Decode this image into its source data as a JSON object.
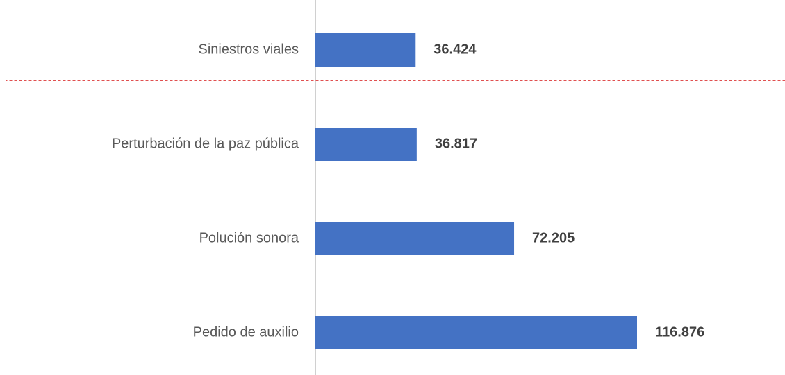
{
  "chart_data": {
    "type": "hbar",
    "categories": [
      "Siniestros viales",
      "Perturbación de la paz pública",
      "Polución sonora",
      "Pedido de auxilio"
    ],
    "values": [
      36424,
      36817,
      72205,
      116876
    ],
    "value_labels": [
      "36.424",
      "36.817",
      "72.205",
      "116.876"
    ],
    "color": "#4472c4"
  }
}
